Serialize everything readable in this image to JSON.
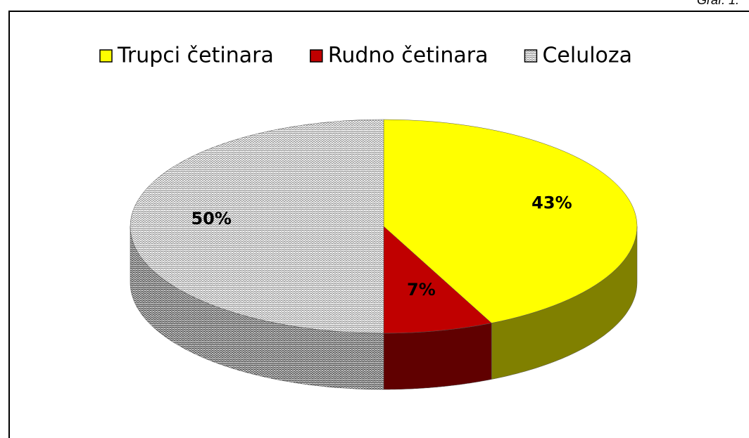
{
  "chart_data": {
    "type": "pie",
    "annotation": "Graf. 1.",
    "categories": [
      "Trupci četinara",
      "Rudno četinara",
      "Celuloza"
    ],
    "values": [
      43,
      7,
      50
    ],
    "value_labels": [
      "43%",
      "7%",
      "50%"
    ],
    "colors": [
      "#ffff00",
      "#c00000",
      "#8c8c8c"
    ],
    "patterns": [
      null,
      null,
      "zigzag"
    ],
    "legend": "top"
  }
}
